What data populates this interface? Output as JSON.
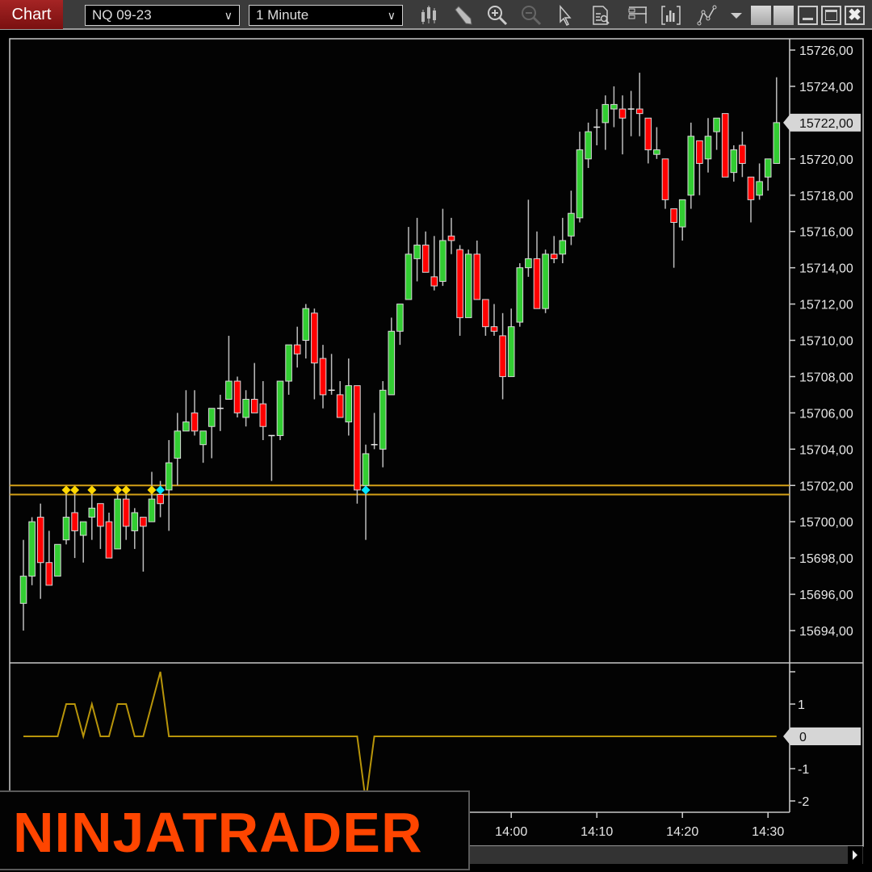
{
  "toolbar": {
    "tab_label": "Chart",
    "instrument": "NQ 09-23",
    "interval": "1 Minute",
    "icons": [
      "bar-type-icon",
      "pencil-draw-icon",
      "zoom-in-icon",
      "zoom-out-icon",
      "pointer-icon",
      "properties-icon",
      "layout-icon",
      "chart-data-icon",
      "strategy-icon",
      "dropdown-arrow-icon"
    ],
    "window_buttons": [
      "minimize",
      "maximize",
      "close"
    ]
  },
  "colors": {
    "up": "#32cd32",
    "down": "#ff0000",
    "outline": "#d8d8d8",
    "level_line": "#d4a017",
    "indicator_line": "#b8950a",
    "signal_yellow": "#ffd700",
    "signal_cyan": "#00e5ff",
    "brand": "#ff4500"
  },
  "logo": {
    "text": "NINJATRADER"
  },
  "chart_data": {
    "type": "candlestick",
    "instrument": "NQ 09-23",
    "interval": "1 Minute",
    "price_axis": {
      "min": 15694,
      "max": 15726,
      "step": 2,
      "labels": [
        "15726,00",
        "15724,00",
        "15722,00",
        "15720,00",
        "15718,00",
        "15716,00",
        "15714,00",
        "15712,00",
        "15710,00",
        "15708,00",
        "15706,00",
        "15704,00",
        "15702,00",
        "15700,00",
        "15698,00",
        "15696,00",
        "15694,00"
      ],
      "current_price": 15722,
      "current_label": "15722,00"
    },
    "time_axis": {
      "labels": [
        "14:00",
        "14:10",
        "14:20",
        "14:30"
      ]
    },
    "levels": [
      15702.0,
      15701.5
    ],
    "candles_fields": [
      "time",
      "open",
      "high",
      "low",
      "close"
    ],
    "candles": [
      [
        "13:03",
        15695.5,
        15699,
        15694,
        15697
      ],
      [
        "13:04",
        15697,
        15700.25,
        15696.5,
        15700
      ],
      [
        "13:05",
        15700.25,
        15701,
        15695.75,
        15697.75
      ],
      [
        "13:06",
        15697.75,
        15699.5,
        15696.5,
        15696.5
      ],
      [
        "13:07",
        15697,
        15698.75,
        15697,
        15698.75
      ],
      [
        "13:08",
        15699,
        15701.75,
        15698.75,
        15700.25
      ],
      [
        "13:09",
        15700.5,
        15701.75,
        15698,
        15699.5
      ],
      [
        "13:10",
        15699.25,
        15700,
        15697.75,
        15700
      ],
      [
        "13:11",
        15700.25,
        15701.75,
        15699,
        15700.75
      ],
      [
        "13:12",
        15701,
        15701,
        15698.5,
        15699.75
      ],
      [
        "13:13",
        15700,
        15700.5,
        15698,
        15698
      ],
      [
        "13:14",
        15698.5,
        15701.75,
        15698.5,
        15701.25
      ],
      [
        "13:15",
        15701.25,
        15701.75,
        15699,
        15699.75
      ],
      [
        "13:16",
        15699.5,
        15700.75,
        15698.5,
        15700.5
      ],
      [
        "13:17",
        15700.25,
        15700.25,
        15697.25,
        15699.75
      ],
      [
        "13:18",
        15700,
        15702.75,
        15700,
        15701.25
      ],
      [
        "13:19",
        15701.5,
        15702.25,
        15700.25,
        15701
      ],
      [
        "13:20",
        15701.75,
        15704.5,
        15699.5,
        15703.25
      ],
      [
        "13:21",
        15703.5,
        15706,
        15702,
        15705
      ],
      [
        "13:22",
        15705,
        15707.25,
        15705,
        15705.5
      ],
      [
        "13:23",
        15706,
        15707.25,
        15704.75,
        15705
      ],
      [
        "13:24",
        15704.25,
        15705,
        15703.25,
        15705
      ],
      [
        "13:25",
        15705.25,
        15706.25,
        15703.5,
        15706.25
      ],
      [
        "13:26",
        15706.25,
        15707,
        15705,
        15706.25
      ],
      [
        "13:27",
        15706.75,
        15710.25,
        15706.75,
        15707.75
      ],
      [
        "13:28",
        15707.75,
        15708,
        15705.75,
        15706
      ],
      [
        "13:29",
        15705.75,
        15707.25,
        15705.25,
        15706.75
      ],
      [
        "13:30",
        15706.75,
        15708.75,
        15706,
        15706
      ],
      [
        "13:31",
        15706.5,
        15707.75,
        15704.5,
        15705.25
      ],
      [
        "13:32",
        15704.75,
        15704.75,
        15702.25,
        15704.75
      ],
      [
        "13:33",
        15704.75,
        15707.75,
        15704.5,
        15707.75
      ],
      [
        "13:34",
        15707.75,
        15709.75,
        15707,
        15709.75
      ],
      [
        "13:35",
        15709.75,
        15710.75,
        15708.5,
        15709.25
      ],
      [
        "13:36",
        15710,
        15712,
        15709,
        15711.75
      ],
      [
        "13:37",
        15711.5,
        15711.75,
        15706.75,
        15708.75
      ],
      [
        "13:38",
        15709,
        15709.75,
        15706.25,
        15707
      ],
      [
        "13:39",
        15707.25,
        15709.25,
        15707,
        15707.25
      ],
      [
        "13:40",
        15707,
        15707.75,
        15705.75,
        15705.75
      ],
      [
        "13:41",
        15705.5,
        15709,
        15704.75,
        15707.5
      ],
      [
        "13:42",
        15707.5,
        15707.5,
        15701,
        15701.75
      ],
      [
        "13:43",
        15702,
        15704.25,
        15699,
        15703.75
      ],
      [
        "13:44",
        15704.25,
        15706,
        15704,
        15704.25
      ],
      [
        "13:45",
        15704,
        15707.75,
        15703,
        15707.25
      ],
      [
        "13:46",
        15707,
        15711.25,
        15707,
        15710.5
      ],
      [
        "13:47",
        15710.5,
        15712,
        15709.75,
        15712
      ],
      [
        "13:48",
        15712.25,
        15716.25,
        15712.25,
        15714.75
      ],
      [
        "13:49",
        15714.5,
        15716.75,
        15713.25,
        15715.25
      ],
      [
        "13:50",
        15715.25,
        15716,
        15713.75,
        15713.75
      ],
      [
        "13:51",
        15713.5,
        15715.75,
        15712.75,
        15713
      ],
      [
        "13:52",
        15713.25,
        15717.25,
        15713,
        15715.5
      ],
      [
        "13:53",
        15715.75,
        15716.75,
        15714.75,
        15715.5
      ],
      [
        "13:54",
        15715,
        15715.25,
        15710.25,
        15711.25
      ],
      [
        "13:55",
        15711.25,
        15715,
        15711.25,
        15714.75
      ],
      [
        "13:56",
        15714.75,
        15715.5,
        15712.25,
        15712.25
      ],
      [
        "13:57",
        15712.25,
        15712.25,
        15710.25,
        15710.75
      ],
      [
        "13:58",
        15710.75,
        15712,
        15710.25,
        15710.5
      ],
      [
        "13:59",
        15710.25,
        15711.5,
        15706.75,
        15708
      ],
      [
        "14:00",
        15708,
        15711.75,
        15708,
        15710.75
      ],
      [
        "14:01",
        15711,
        15714.25,
        15710.75,
        15714
      ],
      [
        "14:02",
        15714,
        15717.75,
        15713.5,
        15714.5
      ],
      [
        "14:03",
        15714.5,
        15716,
        15711.75,
        15711.75
      ],
      [
        "14:04",
        15711.75,
        15715,
        15711.5,
        15714.75
      ],
      [
        "14:05",
        15714.75,
        15715.75,
        15714.25,
        15714.5
      ],
      [
        "14:06",
        15714.75,
        15716.75,
        15714.25,
        15715.5
      ],
      [
        "14:07",
        15715.75,
        15718.25,
        15715.25,
        15717
      ],
      [
        "14:08",
        15716.75,
        15721.5,
        15716.5,
        15720.5
      ],
      [
        "14:09",
        15720,
        15722,
        15719.5,
        15721.5
      ],
      [
        "14:10",
        15721.75,
        15722.75,
        15720.75,
        15721.75
      ],
      [
        "14:11",
        15722,
        15723.5,
        15720.5,
        15723
      ],
      [
        "14:12",
        15722.75,
        15724,
        15721.75,
        15723
      ],
      [
        "14:13",
        15722.75,
        15723.5,
        15720.25,
        15722.25
      ],
      [
        "14:14",
        15722.75,
        15723.75,
        15721.25,
        15722.75
      ],
      [
        "14:15",
        15722.75,
        15724.75,
        15721.25,
        15722.5
      ],
      [
        "14:16",
        15722.25,
        15722.25,
        15719.75,
        15720.5
      ],
      [
        "14:17",
        15720.25,
        15721.75,
        15720,
        15720.5
      ],
      [
        "14:18",
        15720,
        15720,
        15717.25,
        15717.75
      ],
      [
        "14:19",
        15717.25,
        15717.25,
        15714,
        15716.5
      ],
      [
        "14:20",
        15716.25,
        15717.75,
        15715.5,
        15717.75
      ],
      [
        "14:21",
        15718,
        15722,
        15717.25,
        15721.25
      ],
      [
        "14:22",
        15721,
        15721,
        15718,
        15719.75
      ],
      [
        "14:23",
        15720,
        15722.25,
        15719.25,
        15721.25
      ],
      [
        "14:24",
        15721.5,
        15722.25,
        15720.5,
        15722.25
      ],
      [
        "14:25",
        15722.5,
        15722.5,
        15719,
        15719
      ],
      [
        "14:26",
        15719.25,
        15720.75,
        15718.75,
        15720.5
      ],
      [
        "14:27",
        15720.75,
        15721.5,
        15719,
        15719.75
      ],
      [
        "14:28",
        15719,
        15719,
        15716.5,
        15717.75
      ],
      [
        "14:29",
        15718,
        15719.75,
        15717.75,
        15718.75
      ],
      [
        "14:30",
        15719,
        15720,
        15718.25,
        15720
      ],
      [
        "14:31",
        15719.75,
        15724.5,
        15719.75,
        15722
      ]
    ],
    "signals": [
      {
        "time": "13:08",
        "price": 15701.75,
        "color": "yellow"
      },
      {
        "time": "13:09",
        "price": 15701.75,
        "color": "yellow"
      },
      {
        "time": "13:11",
        "price": 15701.75,
        "color": "yellow"
      },
      {
        "time": "13:14",
        "price": 15701.75,
        "color": "yellow"
      },
      {
        "time": "13:15",
        "price": 15701.75,
        "color": "yellow"
      },
      {
        "time": "13:18",
        "price": 15701.75,
        "color": "yellow"
      },
      {
        "time": "13:19",
        "price": 15701.75,
        "color": "cyan"
      },
      {
        "time": "13:43",
        "price": 15701.75,
        "color": "cyan"
      }
    ],
    "indicator": {
      "axis_labels": [
        "1",
        "0",
        "-1",
        "-2"
      ],
      "axis_values": [
        1,
        0,
        -1,
        -2
      ],
      "range": [
        -2.3,
        2.2
      ],
      "current_label": "0",
      "values": [
        0,
        0,
        0,
        0,
        0,
        1,
        1,
        0,
        1,
        0,
        0,
        1,
        1,
        0,
        0,
        1,
        2,
        0,
        0,
        0,
        0,
        0,
        0,
        0,
        0,
        0,
        0,
        0,
        0,
        0,
        0,
        0,
        0,
        0,
        0,
        0,
        0,
        0,
        0,
        0,
        -2,
        0,
        0,
        0,
        0,
        0,
        0,
        0,
        0,
        0,
        0,
        0,
        0,
        0,
        0,
        0,
        0,
        0,
        0,
        0,
        0,
        0,
        0,
        0,
        0,
        0,
        0,
        0,
        0,
        0,
        0,
        0,
        0,
        0,
        0,
        0,
        0,
        0,
        0,
        0,
        0,
        0,
        0,
        0,
        0,
        0,
        0,
        0,
        0
      ]
    }
  }
}
